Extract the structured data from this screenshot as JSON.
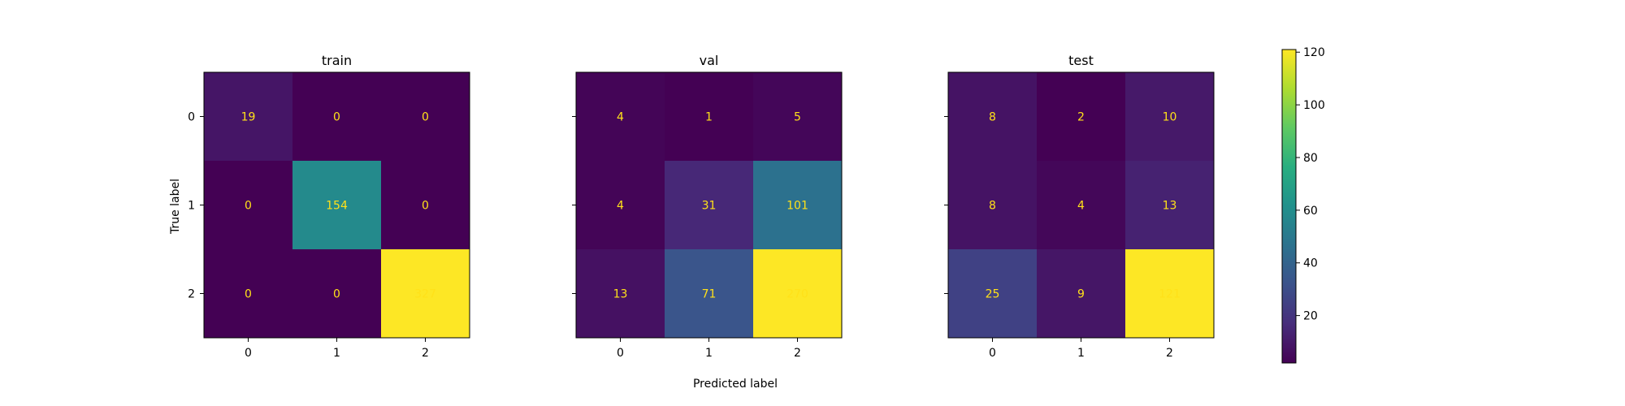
{
  "chart_data": {
    "type": "heatmap",
    "xlabel": "Predicted label",
    "ylabel": "True label",
    "x_tick_labels": [
      "0",
      "1",
      "2"
    ],
    "y_tick_labels": [
      "0",
      "1",
      "2"
    ],
    "colormap": "viridis",
    "colorbar": {
      "vmin": 2,
      "vmax": 121,
      "ticks": [
        "20",
        "40",
        "60",
        "80",
        "100",
        "120"
      ],
      "tick_values": [
        20,
        40,
        60,
        80,
        100,
        120
      ]
    },
    "panels": [
      {
        "title": "train",
        "matrix": [
          [
            19,
            0,
            0
          ],
          [
            0,
            154,
            0
          ],
          [
            0,
            0,
            327
          ]
        ]
      },
      {
        "title": "val",
        "matrix": [
          [
            4,
            1,
            5
          ],
          [
            4,
            31,
            101
          ],
          [
            13,
            71,
            270
          ]
        ]
      },
      {
        "title": "test",
        "matrix": [
          [
            8,
            2,
            10
          ],
          [
            8,
            4,
            13
          ],
          [
            25,
            9,
            121
          ]
        ]
      }
    ]
  },
  "colors": {
    "annotation": "#ffe119",
    "axes": "#000000"
  }
}
